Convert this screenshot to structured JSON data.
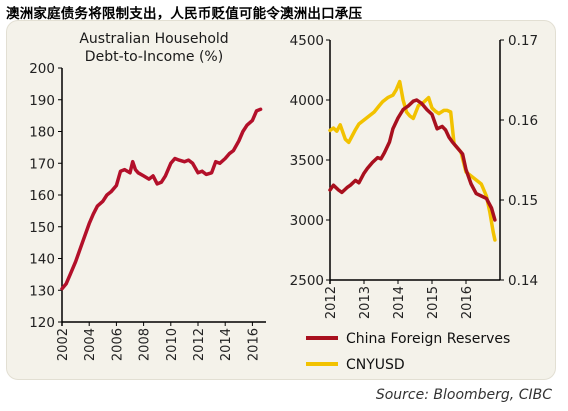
{
  "headline": "澳洲家庭债务将限制支出，人民币贬值可能令澳洲出口承压",
  "source": "Source: Bloomberg, CIBC",
  "colors": {
    "panel_background": "#f4f2ea",
    "au_line": "#b3102a",
    "reserves_line": "#a8101e",
    "cny_line": "#f2c200",
    "axis": "#000000"
  },
  "chart_data": [
    {
      "type": "line",
      "title": "Australian Household Debt-to-Income (%)",
      "xlabel": "",
      "ylabel": "",
      "xlim": [
        2002,
        2017
      ],
      "ylim": [
        120,
        200
      ],
      "x_ticks": [
        2002,
        2004,
        2006,
        2008,
        2010,
        2012,
        2014,
        2016
      ],
      "y_ticks": [
        120,
        130,
        140,
        150,
        160,
        170,
        180,
        190,
        200
      ],
      "grid": false,
      "series": [
        {
          "color": "#b3102a",
          "x": [
            2002.0,
            2002.3,
            2002.6,
            2003.0,
            2003.5,
            2004.0,
            2004.3,
            2004.6,
            2005.0,
            2005.3,
            2005.6,
            2006.0,
            2006.3,
            2006.6,
            2007.0,
            2007.2,
            2007.4,
            2007.6,
            2008.0,
            2008.4,
            2008.7,
            2009.0,
            2009.3,
            2009.6,
            2010.0,
            2010.3,
            2010.6,
            2011.0,
            2011.3,
            2011.6,
            2012.0,
            2012.3,
            2012.6,
            2013.0,
            2013.3,
            2013.6,
            2014.0,
            2014.3,
            2014.6,
            2015.0,
            2015.3,
            2015.6,
            2016.0,
            2016.3,
            2016.6
          ],
          "y": [
            130.5,
            132,
            135,
            139,
            145,
            151,
            154,
            156.5,
            158,
            160,
            161,
            163,
            167.5,
            168,
            167,
            170.5,
            168,
            167,
            166,
            165,
            166,
            163.5,
            164,
            166,
            170,
            171.5,
            171,
            170.5,
            171,
            170,
            167,
            167.5,
            166.5,
            167,
            170.5,
            170,
            171.5,
            173,
            174,
            177,
            180,
            182,
            183.5,
            186.5,
            187
          ]
        }
      ]
    },
    {
      "type": "line",
      "title": "",
      "xlabel": "",
      "ylabel": "",
      "xlim": [
        2012,
        2017
      ],
      "x_ticks": [
        2012,
        2013,
        2014,
        2015,
        2016
      ],
      "ylim_left": [
        2500,
        4500
      ],
      "y_ticks_left": [
        2500,
        3000,
        3500,
        4000,
        4500
      ],
      "ylim_right": [
        0.14,
        0.17
      ],
      "y_ticks_right": [
        "0.14",
        "0.15",
        "0.16",
        "0.17"
      ],
      "grid": false,
      "legend_position": "bottom",
      "series": [
        {
          "name": "China Foreign Reserves",
          "axis": "left",
          "color": "#a8101e",
          "x": [
            2012.0,
            2012.1,
            2012.25,
            2012.35,
            2012.5,
            2012.6,
            2012.75,
            2012.85,
            2013.0,
            2013.1,
            2013.25,
            2013.4,
            2013.5,
            2013.6,
            2013.75,
            2013.85,
            2014.0,
            2014.15,
            2014.3,
            2014.45,
            2014.55,
            2014.7,
            2014.85,
            2015.0,
            2015.15,
            2015.3,
            2015.4,
            2015.5,
            2015.6,
            2015.75,
            2015.9,
            2016.0,
            2016.15,
            2016.3,
            2016.45,
            2016.6,
            2016.75,
            2016.85
          ],
          "y": [
            3250,
            3290,
            3250,
            3230,
            3270,
            3290,
            3330,
            3310,
            3390,
            3430,
            3480,
            3520,
            3510,
            3560,
            3650,
            3760,
            3850,
            3920,
            3950,
            3990,
            4000,
            3970,
            3920,
            3880,
            3760,
            3780,
            3750,
            3690,
            3650,
            3600,
            3550,
            3420,
            3300,
            3220,
            3200,
            3180,
            3100,
            3000
          ]
        },
        {
          "name": "CNYUSD",
          "axis": "right",
          "color": "#f2c200",
          "x": [
            2012.0,
            2012.1,
            2012.2,
            2012.3,
            2012.45,
            2012.55,
            2012.65,
            2012.75,
            2012.85,
            2013.0,
            2013.15,
            2013.3,
            2013.45,
            2013.55,
            2013.7,
            2013.85,
            2013.95,
            2014.05,
            2014.15,
            2014.25,
            2014.35,
            2014.45,
            2014.6,
            2014.75,
            2014.9,
            2015.0,
            2015.1,
            2015.2,
            2015.35,
            2015.45,
            2015.55,
            2015.65,
            2015.75,
            2015.85,
            2016.0,
            2016.15,
            2016.3,
            2016.45,
            2016.6,
            2016.7,
            2016.8,
            2016.85
          ],
          "y": [
            0.1587,
            0.159,
            0.1586,
            0.1594,
            0.1576,
            0.1572,
            0.158,
            0.1588,
            0.1595,
            0.16,
            0.1605,
            0.161,
            0.1618,
            0.1623,
            0.1628,
            0.1631,
            0.1638,
            0.1648,
            0.1625,
            0.161,
            0.1605,
            0.1602,
            0.1618,
            0.1622,
            0.1628,
            0.1615,
            0.1611,
            0.1608,
            0.1612,
            0.1612,
            0.161,
            0.157,
            0.1565,
            0.156,
            0.1535,
            0.153,
            0.1525,
            0.152,
            0.1505,
            0.1485,
            0.146,
            0.145
          ]
        }
      ]
    }
  ]
}
